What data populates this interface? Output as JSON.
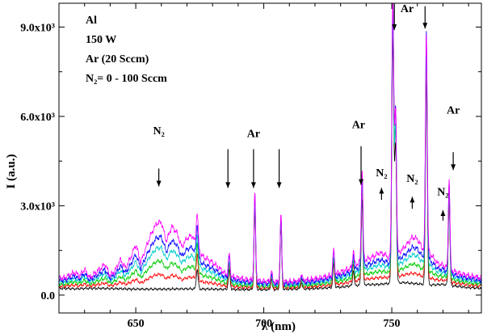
{
  "chart_data": {
    "type": "line",
    "xlabel": "λ (nm)",
    "ylabel": "I (a.u.)",
    "xlim": [
      620,
      785
    ],
    "ylim": [
      -600,
      9800
    ],
    "xticks": [
      650,
      700,
      750
    ],
    "xtick_labels": [
      "650",
      "700",
      "750"
    ],
    "yticks": [
      0,
      3000,
      6000,
      9000
    ],
    "ytick_labels": [
      "0.0",
      "3.0x10³",
      "6.0x10³",
      "9.0x10³"
    ],
    "legend_text": [
      "Al",
      "150 W",
      "Ar  (20 Sccm)",
      "N₂= 0 - 100 Sccm"
    ],
    "annotations": [
      {
        "text": "N₂",
        "x": 659,
        "y": 5400,
        "arrow": "up"
      },
      {
        "text": "Ar",
        "x": 696,
        "y": 5300
      },
      {
        "text": "Ar",
        "x": 737,
        "y": 5600
      },
      {
        "text": "N₂",
        "x": 746,
        "y": 3990
      },
      {
        "text": "Ar",
        "x": 756,
        "y": 9500
      },
      {
        "text": "N₂",
        "x": 758,
        "y": 3800
      },
      {
        "text": "N₂",
        "x": 770,
        "y": 3350
      },
      {
        "text": "Ar",
        "x": 774,
        "y": 6100
      }
    ],
    "arrows": [
      {
        "x": 659,
        "y_from": 4250,
        "y_to": 3650
      },
      {
        "x": 686,
        "y_from": 4900,
        "y_to": 3600
      },
      {
        "x": 696,
        "y_from": 4900,
        "y_to": 3600
      },
      {
        "x": 706,
        "y_from": 4900,
        "y_to": 3600
      },
      {
        "x": 738,
        "y_from": 5000,
        "y_to": 3700
      },
      {
        "x": 746,
        "y_from": 3200,
        "y_to": 3600
      },
      {
        "x": 751,
        "y_from": 9800,
        "y_to": 8900
      },
      {
        "x": 758,
        "y_from": 2900,
        "y_to": 3300
      },
      {
        "x": 763,
        "y_from": 9700,
        "y_to": 8950
      },
      {
        "x": 770,
        "y_from": 2500,
        "y_to": 2850
      },
      {
        "x": 774,
        "y_from": 4800,
        "y_to": 4200
      }
    ],
    "series": [
      {
        "color": "#000000",
        "n2_factor": 0.0
      },
      {
        "color": "#ff0000",
        "n2_factor": 0.22
      },
      {
        "color": "#00cc00",
        "n2_factor": 0.42
      },
      {
        "color": "#00cccc",
        "n2_factor": 0.62
      },
      {
        "color": "#0000ff",
        "n2_factor": 0.78
      },
      {
        "color": "#ff00ff",
        "n2_factor": 1.0
      }
    ],
    "n2_band": [
      [
        622,
        350
      ],
      [
        626,
        550
      ],
      [
        628,
        430
      ],
      [
        630,
        650
      ],
      [
        632,
        350
      ],
      [
        634,
        500
      ],
      [
        636,
        650
      ],
      [
        638,
        820
      ],
      [
        640,
        430
      ],
      [
        642,
        620
      ],
      [
        644,
        980
      ],
      [
        646,
        700
      ],
      [
        648,
        1050
      ],
      [
        650,
        1500
      ],
      [
        652,
        900
      ],
      [
        654,
        1400
      ],
      [
        656,
        1850
      ],
      [
        658,
        2200
      ],
      [
        660,
        2250
      ],
      [
        662,
        1600
      ],
      [
        664,
        2100
      ],
      [
        666,
        1900
      ],
      [
        668,
        1400
      ],
      [
        670,
        1700
      ],
      [
        672,
        1800
      ],
      [
        674,
        1400
      ],
      [
        676,
        1100
      ],
      [
        678,
        1000
      ],
      [
        680,
        900
      ],
      [
        682,
        750
      ],
      [
        684,
        600
      ],
      [
        686,
        450
      ],
      [
        690,
        380
      ],
      [
        694,
        330
      ],
      [
        698,
        300
      ],
      [
        702,
        270
      ],
      [
        706,
        250
      ],
      [
        710,
        250
      ],
      [
        714,
        270
      ],
      [
        718,
        300
      ],
      [
        722,
        350
      ],
      [
        726,
        400
      ],
      [
        730,
        500
      ],
      [
        734,
        600
      ],
      [
        738,
        800
      ],
      [
        742,
        900
      ],
      [
        745,
        1050
      ],
      [
        747,
        1000
      ],
      [
        750,
        800
      ],
      [
        754,
        1100
      ],
      [
        756,
        1300
      ],
      [
        758,
        1550
      ],
      [
        760,
        1500
      ],
      [
        762,
        1200
      ],
      [
        765,
        1050
      ],
      [
        768,
        700
      ],
      [
        770,
        650
      ],
      [
        772,
        550
      ],
      [
        776,
        450
      ],
      [
        780,
        400
      ],
      [
        785,
        350
      ]
    ],
    "base": [
      [
        620,
        230
      ],
      [
        626,
        210
      ],
      [
        632,
        230
      ],
      [
        640,
        220
      ],
      [
        650,
        200
      ],
      [
        660,
        200
      ],
      [
        670,
        210
      ],
      [
        680,
        200
      ],
      [
        690,
        190
      ],
      [
        700,
        180
      ],
      [
        710,
        200
      ],
      [
        720,
        220
      ],
      [
        730,
        270
      ],
      [
        735,
        320
      ],
      [
        740,
        350
      ],
      [
        745,
        360
      ],
      [
        750,
        400
      ],
      [
        755,
        420
      ],
      [
        760,
        380
      ],
      [
        765,
        340
      ],
      [
        770,
        360
      ],
      [
        775,
        300
      ],
      [
        780,
        250
      ],
      [
        785,
        230
      ]
    ],
    "peaks": [
      {
        "x": 674.0,
        "h": 1250,
        "w": 0.5,
        "n2": 0.4
      },
      {
        "x": 686.5,
        "h": 800,
        "w": 0.5,
        "n2": 0.1
      },
      {
        "x": 696.5,
        "h": 3050,
        "w": 0.45,
        "n2": 0.0
      },
      {
        "x": 703.0,
        "h": 400,
        "w": 0.4,
        "n2": 0.0
      },
      {
        "x": 706.7,
        "h": 2350,
        "w": 0.45,
        "n2": 0.0
      },
      {
        "x": 714.7,
        "h": 250,
        "w": 0.4,
        "n2": 0.0
      },
      {
        "x": 727.3,
        "h": 900,
        "w": 0.45,
        "n2": 0.0
      },
      {
        "x": 735.0,
        "h": 600,
        "w": 0.4,
        "n2": 0.0
      },
      {
        "x": 738.4,
        "h": 3300,
        "w": 0.45,
        "n2": 0.0
      },
      {
        "x": 750.4,
        "h": 9350,
        "w": 0.55,
        "n2": 0.0
      },
      {
        "x": 751.5,
        "h": 5200,
        "w": 0.5,
        "n2": 0.0
      },
      {
        "x": 763.5,
        "h": 7800,
        "w": 0.5,
        "n2": 0.0
      },
      {
        "x": 772.4,
        "h": 3200,
        "w": 0.45,
        "n2": 0.0
      }
    ]
  }
}
